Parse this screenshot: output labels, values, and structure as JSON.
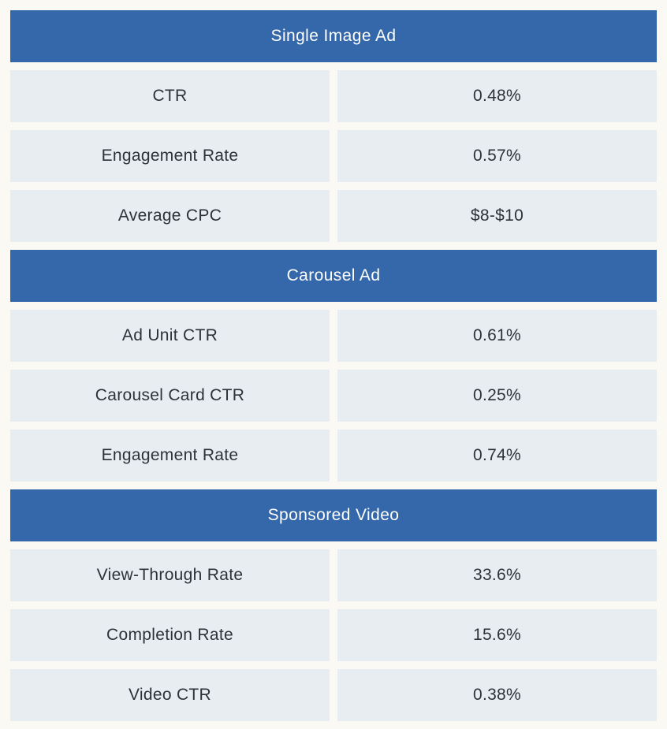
{
  "colors": {
    "page_background": "#fbf9f4",
    "section_header_background": "#3568aa",
    "section_header_text": "#ffffff",
    "cell_background": "#e8edf2",
    "cell_text": "#2d3238"
  },
  "chart_data": {
    "type": "table",
    "sections": [
      {
        "title": "Single Image Ad",
        "rows": [
          {
            "metric": "CTR",
            "value": "0.48%"
          },
          {
            "metric": "Engagement Rate",
            "value": "0.57%"
          },
          {
            "metric": "Average CPC",
            "value": "$8-$10"
          }
        ]
      },
      {
        "title": "Carousel Ad",
        "rows": [
          {
            "metric": "Ad Unit CTR",
            "value": "0.61%"
          },
          {
            "metric": "Carousel Card CTR",
            "value": "0.25%"
          },
          {
            "metric": "Engagement Rate",
            "value": "0.74%"
          }
        ]
      },
      {
        "title": "Sponsored Video",
        "rows": [
          {
            "metric": "View-Through Rate",
            "value": "33.6%"
          },
          {
            "metric": "Completion Rate",
            "value": "15.6%"
          },
          {
            "metric": "Video CTR",
            "value": "0.38%"
          }
        ]
      }
    ]
  }
}
